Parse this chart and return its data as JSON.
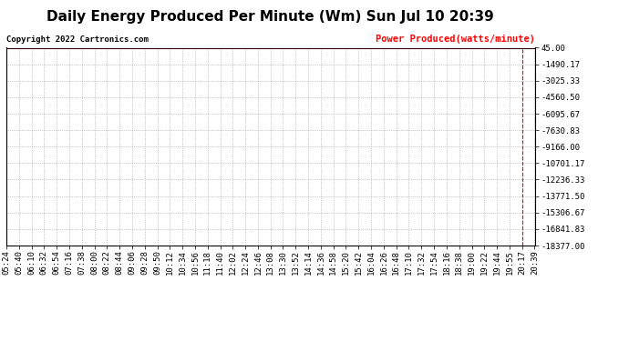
{
  "title": "Daily Energy Produced Per Minute (Wm) Sun Jul 10 20:39",
  "copyright_text": "Copyright 2022 Cartronics.com",
  "legend_label": "Power Produced(watts/minute)",
  "legend_color": "#ff0000",
  "background_color": "#ffffff",
  "plot_bg_color": "#ffffff",
  "grid_color": "#aaaaaa",
  "line_color": "#ff0000",
  "ymin": -18377.0,
  "ymax": 45.0,
  "yticks": [
    45.0,
    -1490.17,
    -3025.33,
    -4560.5,
    -6095.67,
    -7630.83,
    -9166.0,
    -10701.17,
    -12236.33,
    -13771.5,
    -15306.67,
    -16841.83,
    -18377.0
  ],
  "ytick_labels": [
    "45.00",
    "-1490.17",
    "-3025.33",
    "-4560.50",
    "-6095.67",
    "-7630.83",
    "-9166.00",
    "-10701.17",
    "-12236.33",
    "-13771.50",
    "-15306.67",
    "-16841.83",
    "-18377.00"
  ],
  "xtick_labels": [
    "05:24",
    "05:40",
    "06:10",
    "06:32",
    "06:54",
    "07:16",
    "07:38",
    "08:00",
    "08:22",
    "08:44",
    "09:06",
    "09:28",
    "09:50",
    "10:12",
    "10:34",
    "10:56",
    "11:18",
    "11:40",
    "12:02",
    "12:24",
    "12:46",
    "13:08",
    "13:30",
    "13:52",
    "14:14",
    "14:36",
    "14:58",
    "15:20",
    "15:42",
    "16:04",
    "16:26",
    "16:48",
    "17:10",
    "17:32",
    "17:54",
    "18:16",
    "18:38",
    "19:00",
    "19:22",
    "19:44",
    "19:55",
    "20:17",
    "20:39"
  ],
  "horizontal_line_y": 45.0,
  "title_fontsize": 11,
  "tick_fontsize": 6.5,
  "copyright_fontsize": 6.5,
  "legend_fontsize": 7.5
}
